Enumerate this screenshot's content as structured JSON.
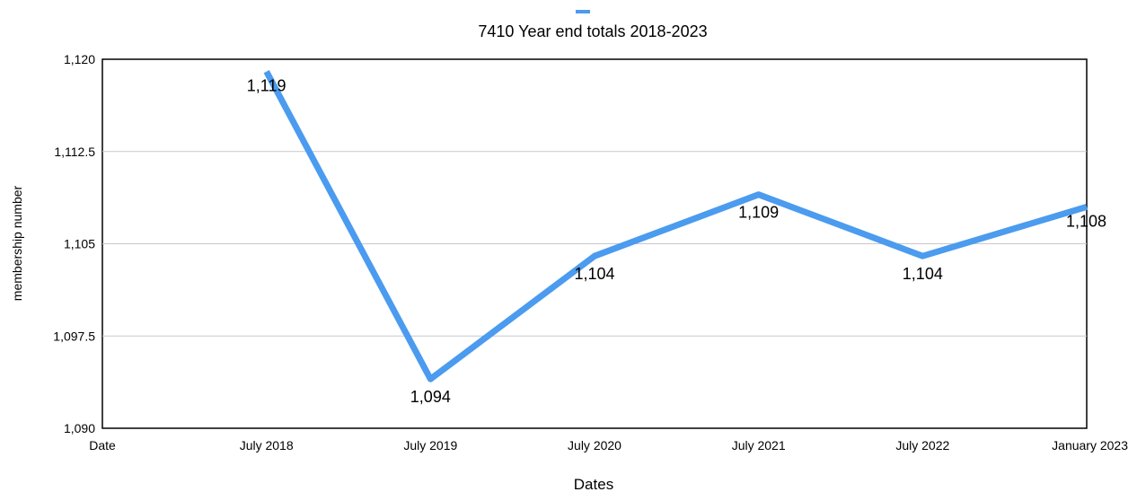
{
  "chart_data": {
    "type": "line",
    "legend_label": "7410 Year end totals 2018-2023",
    "legend_position": "top-center",
    "xlabel": "Dates",
    "ylabel": "membership number",
    "categories": [
      "Date",
      "July 2018",
      "July 2019",
      "July 2020",
      "July 2021",
      "July 2022",
      "January 2023"
    ],
    "series": [
      {
        "name": "7410 Year end totals 2018-2023",
        "color": "#4b9bef",
        "values": [
          null,
          1119,
          1094,
          1104,
          1109,
          1104,
          1108
        ],
        "labels": [
          "",
          "1,119",
          "1,094",
          "1,104",
          "1,109",
          "1,104",
          "1,108"
        ]
      }
    ],
    "ylim": [
      1090,
      1120
    ],
    "yticks": [
      1090,
      1097.5,
      1105,
      1112.5,
      1120
    ],
    "ytick_labels": [
      "1,090",
      "1,097.5",
      "1,105",
      "1,112.5",
      "1,120"
    ],
    "grid": true
  }
}
